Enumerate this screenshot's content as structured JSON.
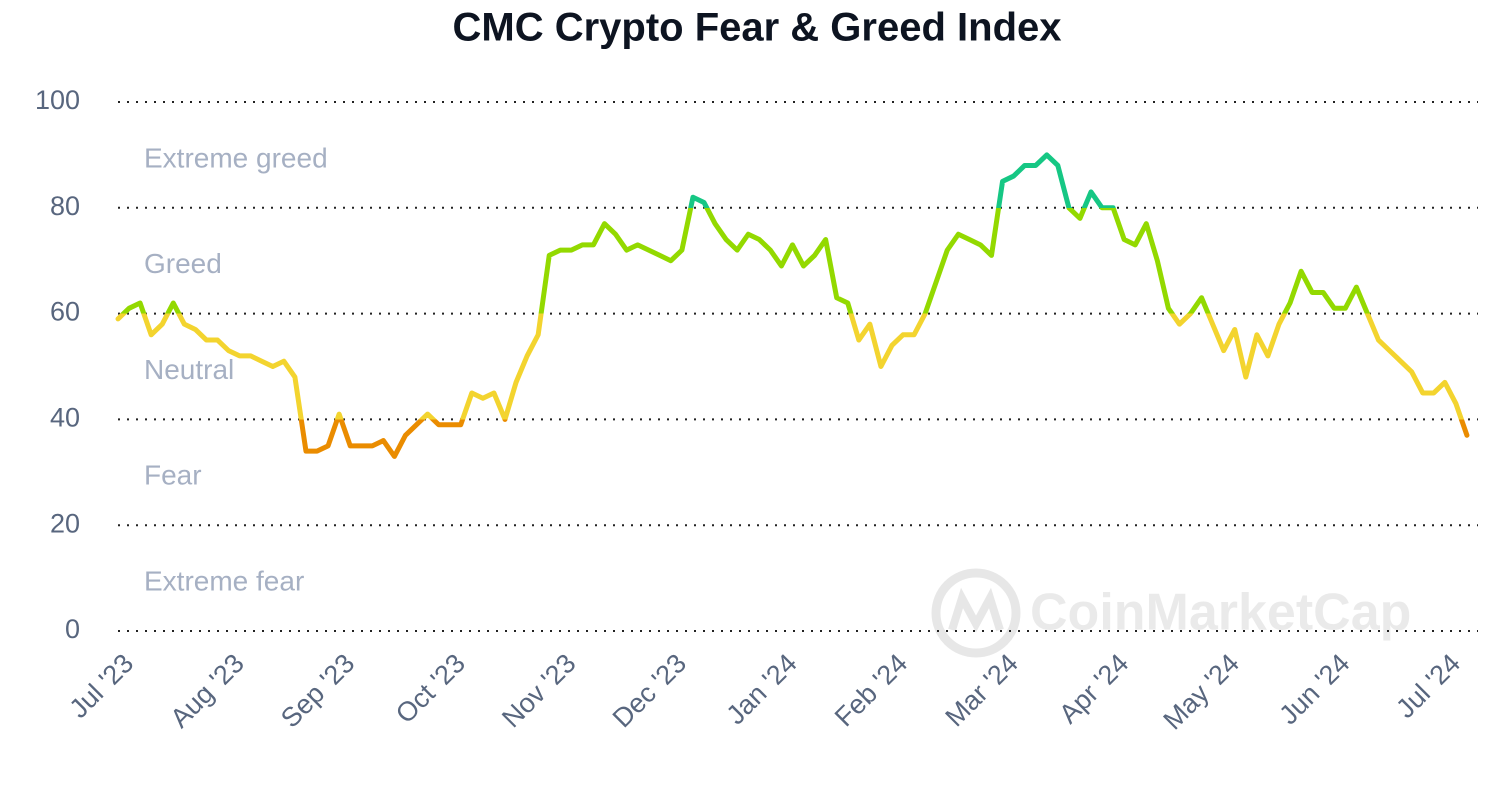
{
  "chart_data": {
    "type": "line",
    "title": "CMC Crypto Fear & Greed Index",
    "watermark": "CoinMarketCap",
    "x": [
      0,
      0.1,
      0.2,
      0.3,
      0.4,
      0.5,
      0.6,
      0.7,
      0.8,
      0.9,
      1,
      1.1,
      1.2,
      1.3,
      1.4,
      1.5,
      1.6,
      1.7,
      1.8,
      1.9,
      2,
      2.1,
      2.2,
      2.3,
      2.4,
      2.5,
      2.6,
      2.7,
      2.8,
      2.9,
      3,
      3.1,
      3.2,
      3.3,
      3.4,
      3.5,
      3.6,
      3.7,
      3.8,
      3.9,
      4,
      4.1,
      4.2,
      4.3,
      4.4,
      4.5,
      4.6,
      4.7,
      4.8,
      4.9,
      5,
      5.1,
      5.2,
      5.3,
      5.4,
      5.5,
      5.6,
      5.7,
      5.8,
      5.9,
      6,
      6.1,
      6.2,
      6.3,
      6.4,
      6.5,
      6.6,
      6.7,
      6.8,
      6.9,
      7,
      7.1,
      7.2,
      7.3,
      7.4,
      7.5,
      7.6,
      7.7,
      7.8,
      7.9,
      8,
      8.1,
      8.2,
      8.3,
      8.4,
      8.5,
      8.6,
      8.7,
      8.8,
      8.9,
      9,
      9.1,
      9.2,
      9.3,
      9.4,
      9.5,
      9.6,
      9.7,
      9.8,
      9.9,
      10,
      10.1,
      10.2,
      10.3,
      10.4,
      10.5,
      10.6,
      10.7,
      10.8,
      10.9,
      11,
      11.1,
      11.2,
      11.3,
      11.4,
      11.5,
      11.6,
      11.7,
      11.8,
      11.9,
      12,
      12.1,
      12.2
    ],
    "series": [
      {
        "values": [
          59,
          61,
          62,
          56,
          58,
          62,
          58,
          57,
          55,
          55,
          53,
          52,
          52,
          51,
          50,
          51,
          48,
          34,
          34,
          35,
          41,
          35,
          35,
          35,
          36,
          33,
          37,
          39,
          41,
          39,
          39,
          39,
          45,
          44,
          45,
          40,
          47,
          52,
          56,
          71,
          72,
          72,
          73,
          73,
          77,
          75,
          72,
          73,
          72,
          71,
          70,
          72,
          82,
          81,
          77,
          74,
          72,
          75,
          74,
          72,
          69,
          73,
          69,
          71,
          74,
          63,
          62,
          55,
          58,
          50,
          54,
          56,
          56,
          60,
          66,
          72,
          75,
          74,
          73,
          71,
          85,
          86,
          88,
          88,
          90,
          88,
          80,
          78,
          83,
          80,
          80,
          74,
          73,
          77,
          70,
          61,
          58,
          60,
          63,
          58,
          53,
          57,
          48,
          56,
          52,
          58,
          62,
          68,
          64,
          64,
          61,
          61,
          65,
          60,
          55,
          53,
          51,
          49,
          45,
          45,
          47,
          43,
          37
        ]
      }
    ],
    "zones": [
      {
        "label": "Extreme greed",
        "from": 80,
        "to": 100,
        "color": "#16c784"
      },
      {
        "label": "Greed",
        "from": 60,
        "to": 80,
        "color": "#93d900"
      },
      {
        "label": "Neutral",
        "from": 40,
        "to": 60,
        "color": "#f3d42f"
      },
      {
        "label": "Fear",
        "from": 20,
        "to": 40,
        "color": "#ea8c00"
      },
      {
        "label": "Extreme fear",
        "from": 0,
        "to": 20,
        "color": "#ea3943"
      }
    ],
    "xlim": [
      0,
      12.3
    ],
    "xticks": [
      {
        "value": 0,
        "label": "Jul '23"
      },
      {
        "value": 1,
        "label": "Aug '23"
      },
      {
        "value": 2,
        "label": "Sep '23"
      },
      {
        "value": 3,
        "label": "Oct '23"
      },
      {
        "value": 4,
        "label": "Nov '23"
      },
      {
        "value": 5,
        "label": "Dec '23"
      },
      {
        "value": 6,
        "label": "Jan '24"
      },
      {
        "value": 7,
        "label": "Feb '24"
      },
      {
        "value": 8,
        "label": "Mar '24"
      },
      {
        "value": 9,
        "label": "Apr '24"
      },
      {
        "value": 10,
        "label": "May '24"
      },
      {
        "value": 11,
        "label": "Jun '24"
      },
      {
        "value": 12,
        "label": "Jul '24"
      }
    ],
    "ylim": [
      0,
      100
    ],
    "yticks": [
      0,
      20,
      40,
      60,
      80,
      100
    ],
    "grid": true
  }
}
